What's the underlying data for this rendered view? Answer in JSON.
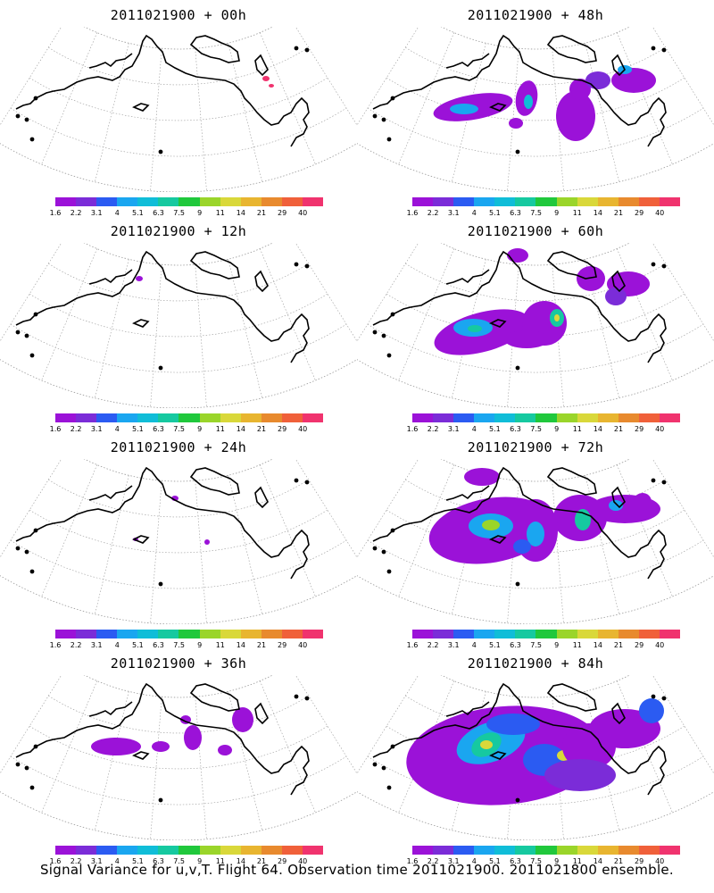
{
  "colorbar": {
    "colors": [
      "#9b12d8",
      "#7b2cd8",
      "#2b5bf2",
      "#1aa6f0",
      "#10bdd8",
      "#16c9a0",
      "#20c83c",
      "#9ad52a",
      "#d9d83a",
      "#e8b530",
      "#e88a2e",
      "#f0603a",
      "#f0336e"
    ],
    "labels": [
      "1.6",
      "2.2",
      "3.1",
      "4",
      "5.1",
      "6.3",
      "7.5",
      "9",
      "11",
      "14",
      "21",
      "29",
      "40"
    ]
  },
  "panels": [
    {
      "title": "2011021900 + 00h",
      "intensity": 0
    },
    {
      "title": "2011021900 + 48h",
      "intensity": 3
    },
    {
      "title": "2011021900 + 12h",
      "intensity": 0.5
    },
    {
      "title": "2011021900 + 60h",
      "intensity": 4
    },
    {
      "title": "2011021900 + 24h",
      "intensity": 1
    },
    {
      "title": "2011021900 + 72h",
      "intensity": 5
    },
    {
      "title": "2011021900 + 36h",
      "intensity": 2
    },
    {
      "title": "2011021900 + 84h",
      "intensity": 6
    }
  ],
  "footer": "Signal Variance for u,v,T. Flight 64. Observation time 2011021900. 2011021800 ensemble."
}
